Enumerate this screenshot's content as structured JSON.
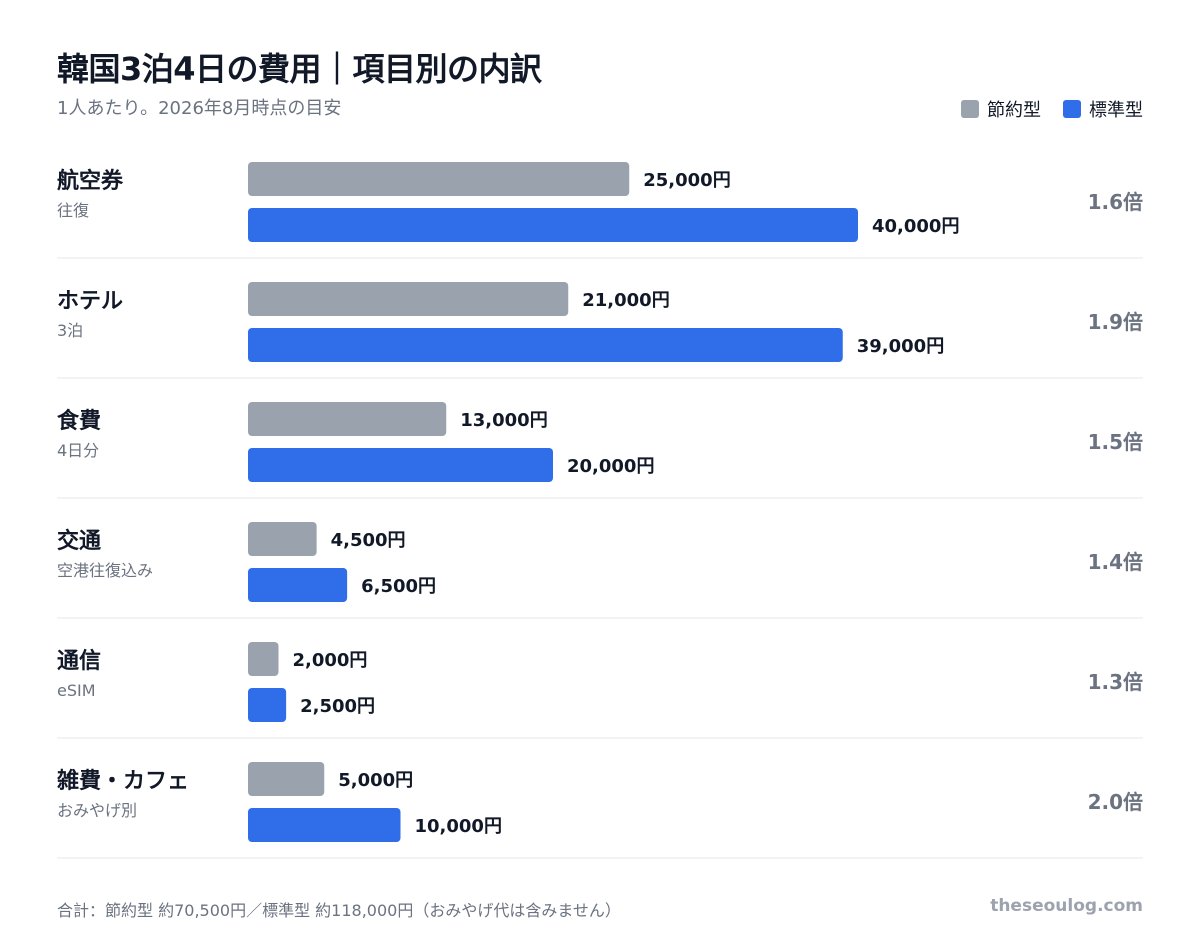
{
  "header": {
    "title": "韓国3泊4日の費用｜項目別の内訳",
    "subtitle": "1人あたり。2026年8月時点の目安"
  },
  "legend": {
    "items": [
      {
        "label": "節約型",
        "color": "#9aa3ad"
      },
      {
        "label": "標準型",
        "color": "#2f6ee8"
      }
    ]
  },
  "footer": {
    "note": "合計：節約型 約70,500円／標準型 約118,000円（おみやげ代は含みません）",
    "brand": "theseoulog.com"
  },
  "chart_data": {
    "type": "bar",
    "orientation": "horizontal",
    "categories": [
      "航空券",
      "ホテル",
      "食費",
      "交通",
      "通信",
      "雑費・カフェ"
    ],
    "category_notes": [
      "往復",
      "3泊",
      "4日分",
      "空港往復込み",
      "eSIM",
      "おみやげ別"
    ],
    "series": [
      {
        "name": "節約型",
        "color": "#9aa3ad",
        "values": [
          25000,
          21000,
          13000,
          4500,
          2000,
          5000
        ]
      },
      {
        "name": "標準型",
        "color": "#2f6ee8",
        "values": [
          40000,
          39000,
          20000,
          6500,
          2500,
          10000
        ]
      }
    ],
    "value_labels": [
      [
        "25,000円",
        "21,000円",
        "13,000円",
        "4,500円",
        "2,000円",
        "5,000円"
      ],
      [
        "40,000円",
        "39,000円",
        "20,000円",
        "6,500円",
        "2,500円",
        "10,000円"
      ]
    ],
    "ratio_labels": [
      "1.6倍",
      "1.9倍",
      "1.5倍",
      "1.4倍",
      "1.3倍",
      "2.0倍"
    ],
    "unit": "円",
    "xlim": [
      0,
      40000
    ],
    "grid": false,
    "legend_position": "top-right"
  }
}
